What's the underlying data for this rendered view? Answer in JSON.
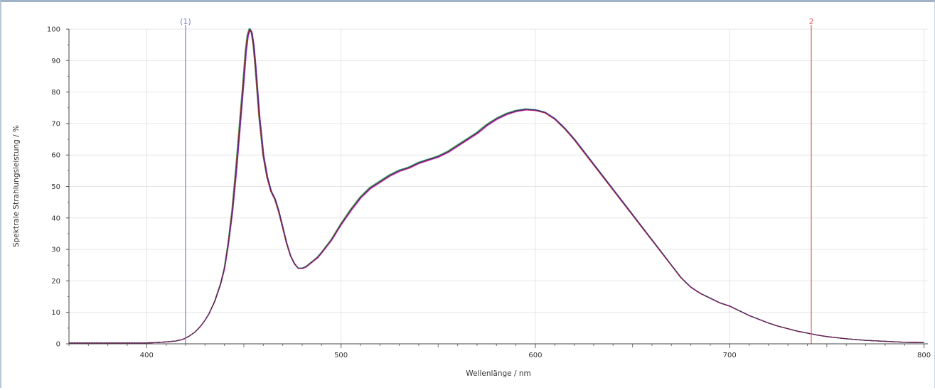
{
  "chart_data": {
    "type": "line",
    "title": "",
    "xlabel": "Wellenlänge / nm",
    "ylabel": "Spektrale Strahlungsleistung / %",
    "xlim": [
      360,
      802
    ],
    "ylim": [
      0,
      100
    ],
    "xticks": [
      400,
      500,
      600,
      700,
      800
    ],
    "yticks": [
      0,
      10,
      20,
      30,
      40,
      50,
      60,
      70,
      80,
      90,
      100
    ],
    "grid": true,
    "markers": [
      {
        "label": "(1)",
        "x": 420,
        "color": "#7b7bd6"
      },
      {
        "label": "2",
        "x": 742,
        "color": "#e06060"
      }
    ],
    "colors": [
      "#d42bd4",
      "#2aa84a",
      "#2a4fd6",
      "#e02a2a",
      "#8a2a8a",
      "#2a2a2a"
    ],
    "series": [
      {
        "x": [
          360,
          370,
          380,
          390,
          400,
          405,
          410,
          415,
          418,
          420,
          422,
          425,
          428,
          430,
          432,
          435,
          438,
          440,
          442,
          444,
          446,
          448,
          450,
          451,
          452,
          453,
          454,
          455,
          456,
          457,
          458,
          459,
          460,
          462,
          464,
          466,
          468,
          470,
          472,
          474,
          476,
          478,
          480,
          482,
          484,
          486,
          488,
          490,
          495,
          500,
          505,
          510,
          515,
          520,
          525,
          530,
          535,
          540,
          545,
          550,
          555,
          560,
          565,
          570,
          575,
          580,
          585,
          590,
          595,
          600,
          605,
          610,
          615,
          620,
          625,
          630,
          635,
          640,
          645,
          650,
          655,
          660,
          665,
          670,
          675,
          680,
          685,
          690,
          695,
          700,
          705,
          710,
          715,
          720,
          725,
          730,
          735,
          740,
          745,
          750,
          760,
          770,
          780,
          790,
          800
        ],
        "y": [
          0.3,
          0.3,
          0.3,
          0.3,
          0.3,
          0.4,
          0.6,
          0.9,
          1.3,
          1.8,
          2.5,
          3.8,
          5.8,
          7.5,
          9.5,
          13.5,
          19,
          24,
          32,
          42,
          55,
          70,
          85,
          93,
          98,
          100,
          99,
          95,
          88,
          80,
          72,
          66,
          60,
          53,
          48.5,
          46,
          42,
          37,
          32,
          28,
          25.5,
          24,
          24,
          24.5,
          25.5,
          26.5,
          27.5,
          29,
          33,
          38,
          42.5,
          46.5,
          49.5,
          51.5,
          53.5,
          55,
          56,
          57.5,
          58.5,
          59.5,
          61,
          63,
          65,
          67,
          69.5,
          71.5,
          73,
          74,
          74.5,
          74.3,
          73.5,
          71.5,
          68.5,
          65,
          61,
          57,
          53,
          49,
          45,
          41,
          37,
          33,
          29,
          25,
          21,
          18,
          16,
          14.5,
          13,
          12,
          10.5,
          9,
          7.8,
          6.6,
          5.6,
          4.8,
          4,
          3.4,
          2.8,
          2.3,
          1.6,
          1.1,
          0.8,
          0.5,
          0.4
        ]
      }
    ]
  }
}
